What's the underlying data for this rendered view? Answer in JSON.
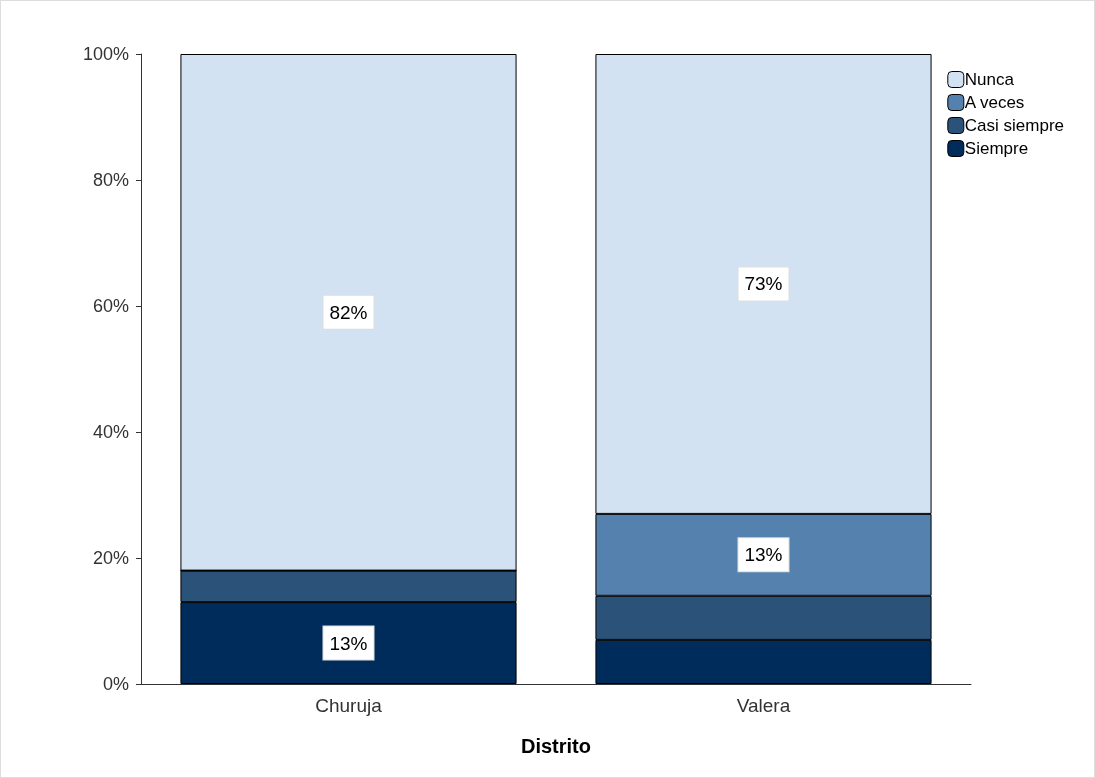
{
  "chart_data": {
    "type": "bar",
    "xlabel": "Distrito",
    "categories": [
      "Churuja",
      "Valera"
    ],
    "stacked": true,
    "series": [
      {
        "name": "Siempre",
        "color": "#002c5c",
        "values": [
          13,
          7
        ],
        "value_labels": [
          "13%",
          null
        ]
      },
      {
        "name": "Casi siempre",
        "color": "#2b5278",
        "values": [
          5,
          7
        ],
        "value_labels": [
          null,
          null
        ]
      },
      {
        "name": "A veces",
        "color": "#5581ae",
        "values": [
          0,
          13
        ],
        "value_labels": [
          null,
          "13%"
        ]
      },
      {
        "name": "Nunca",
        "color": "#d3e2f2",
        "values": [
          82,
          73
        ],
        "value_labels": [
          "82%",
          "73%"
        ]
      }
    ],
    "ylim": [
      0,
      100
    ],
    "yticks": [
      {
        "value": 0,
        "label": "0%"
      },
      {
        "value": 20,
        "label": "20%"
      },
      {
        "value": 40,
        "label": "40%"
      },
      {
        "value": 60,
        "label": "60%"
      },
      {
        "value": 80,
        "label": "80%"
      },
      {
        "value": 100,
        "label": "100%"
      }
    ],
    "grid": false,
    "legend": "top right"
  }
}
